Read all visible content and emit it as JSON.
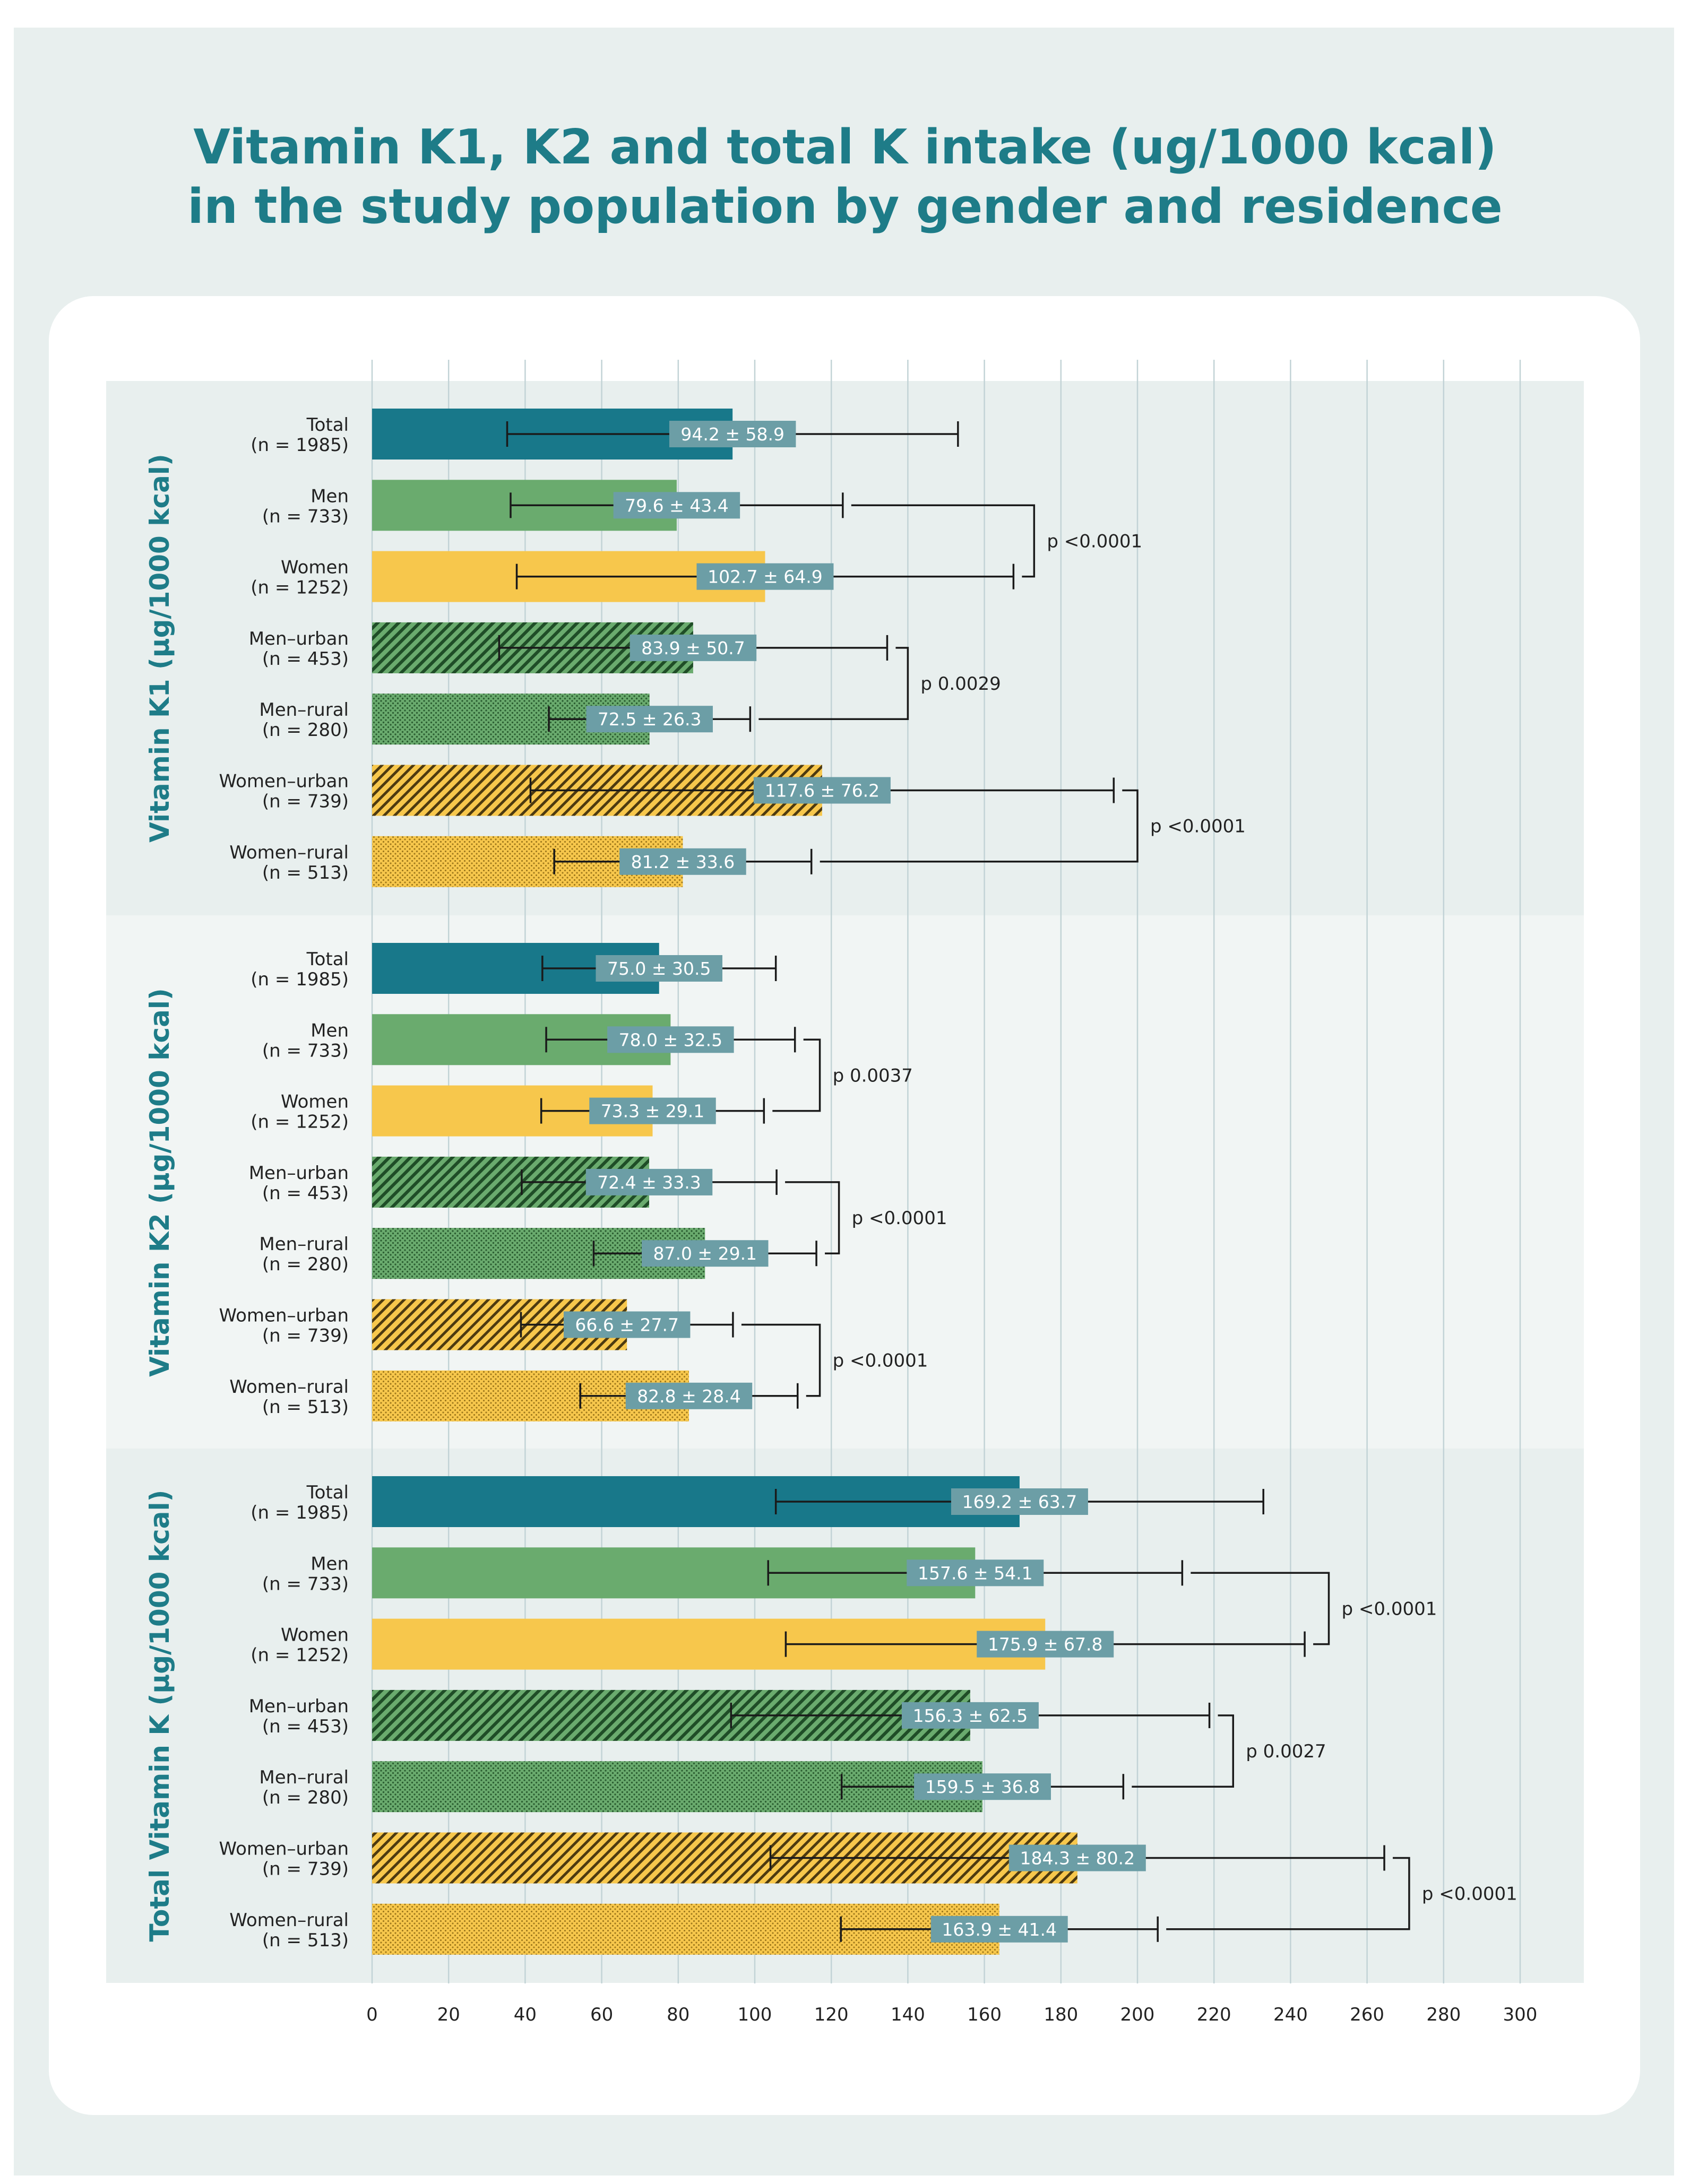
{
  "title": {
    "line1": "Vitamin K1, K2 and total K intake (ug/1000 kcal)",
    "line2": "in the study population by gender and residence"
  },
  "colors": {
    "title": "#1e7c88",
    "total": "#18788a",
    "men": "#6aab6e",
    "women": "#f7c74c",
    "men_pattern": "#1f4d27",
    "women_pattern": "#4d3a10",
    "label_box": "#6c9ea6",
    "panel_a": "#e8efee",
    "panel_b": "#f1f5f4",
    "gridline": "#c2d3d6"
  },
  "chart_data": {
    "type": "bar",
    "orientation": "horizontal",
    "xlim": [
      0,
      300
    ],
    "xticks": [
      0,
      20,
      40,
      60,
      80,
      100,
      120,
      140,
      160,
      180,
      200,
      220,
      240,
      260,
      280,
      300
    ],
    "grid": true,
    "panels": [
      {
        "ylabel": "Vitamin K1 (µg/1000 kcal)",
        "categories": [
          {
            "name": "Total",
            "n": "(n = 1985)",
            "group": "total",
            "style": "solid",
            "mean": 94.2,
            "sd": 58.9,
            "label": "94.2 ± 58.9"
          },
          {
            "name": "Men",
            "n": "(n = 733)",
            "group": "men",
            "style": "solid",
            "mean": 79.6,
            "sd": 43.4,
            "label": "79.6 ± 43.4"
          },
          {
            "name": "Women",
            "n": "(n = 1252)",
            "group": "women",
            "style": "solid",
            "mean": 102.7,
            "sd": 64.9,
            "label": "102.7 ± 64.9"
          },
          {
            "name": "Men–urban",
            "n": "(n = 453)",
            "group": "men",
            "style": "hatch",
            "mean": 83.9,
            "sd": 50.7,
            "label": "83.9 ± 50.7"
          },
          {
            "name": "Men–rural",
            "n": "(n = 280)",
            "group": "men",
            "style": "dots",
            "mean": 72.5,
            "sd": 26.3,
            "label": "72.5 ± 26.3"
          },
          {
            "name": "Women–urban",
            "n": "(n = 739)",
            "group": "women",
            "style": "hatch",
            "mean": 117.6,
            "sd": 76.2,
            "label": "117.6 ± 76.2"
          },
          {
            "name": "Women–rural",
            "n": "(n = 513)",
            "group": "women",
            "style": "dots",
            "mean": 81.2,
            "sd": 33.6,
            "label": "81.2 ± 33.6"
          }
        ],
        "comparisons": [
          {
            "rows": [
              1,
              2
            ],
            "bracket_x": 173,
            "p": "p <0.0001"
          },
          {
            "rows": [
              3,
              4
            ],
            "bracket_x": 140,
            "p": "p 0.0029"
          },
          {
            "rows": [
              5,
              6
            ],
            "bracket_x": 200,
            "p": "p <0.0001"
          }
        ]
      },
      {
        "ylabel": "Vitamin K2 (µg/1000 kcal)",
        "categories": [
          {
            "name": "Total",
            "n": "(n = 1985)",
            "group": "total",
            "style": "solid",
            "mean": 75.0,
            "sd": 30.5,
            "label": "75.0 ± 30.5"
          },
          {
            "name": "Men",
            "n": "(n = 733)",
            "group": "men",
            "style": "solid",
            "mean": 78.0,
            "sd": 32.5,
            "label": "78.0 ± 32.5"
          },
          {
            "name": "Women",
            "n": "(n = 1252)",
            "group": "women",
            "style": "solid",
            "mean": 73.3,
            "sd": 29.1,
            "label": "73.3 ± 29.1"
          },
          {
            "name": "Men–urban",
            "n": "(n = 453)",
            "group": "men",
            "style": "hatch",
            "mean": 72.4,
            "sd": 33.3,
            "label": "72.4 ± 33.3"
          },
          {
            "name": "Men–rural",
            "n": "(n = 280)",
            "group": "men",
            "style": "dots",
            "mean": 87.0,
            "sd": 29.1,
            "label": "87.0 ± 29.1"
          },
          {
            "name": "Women–urban",
            "n": "(n = 739)",
            "group": "women",
            "style": "hatch",
            "mean": 66.6,
            "sd": 27.7,
            "label": "66.6 ± 27.7"
          },
          {
            "name": "Women–rural",
            "n": "(n = 513)",
            "group": "women",
            "style": "dots",
            "mean": 82.8,
            "sd": 28.4,
            "label": "82.8 ± 28.4"
          }
        ],
        "comparisons": [
          {
            "rows": [
              1,
              2
            ],
            "bracket_x": 117,
            "p": "p 0.0037"
          },
          {
            "rows": [
              3,
              4
            ],
            "bracket_x": 122,
            "p": "p <0.0001"
          },
          {
            "rows": [
              5,
              6
            ],
            "bracket_x": 117,
            "p": "p <0.0001"
          }
        ]
      },
      {
        "ylabel": "Total Vitamin K (µg/1000 kcal)",
        "categories": [
          {
            "name": "Total",
            "n": "(n = 1985)",
            "group": "total",
            "style": "solid",
            "mean": 169.2,
            "sd": 63.7,
            "label": "169.2 ± 63.7"
          },
          {
            "name": "Men",
            "n": "(n = 733)",
            "group": "men",
            "style": "solid",
            "mean": 157.6,
            "sd": 54.1,
            "label": "157.6 ± 54.1"
          },
          {
            "name": "Women",
            "n": "(n = 1252)",
            "group": "women",
            "style": "solid",
            "mean": 175.9,
            "sd": 67.8,
            "label": "175.9 ± 67.8"
          },
          {
            "name": "Men–urban",
            "n": "(n = 453)",
            "group": "men",
            "style": "hatch",
            "mean": 156.3,
            "sd": 62.5,
            "label": "156.3 ± 62.5"
          },
          {
            "name": "Men–rural",
            "n": "(n = 280)",
            "group": "men",
            "style": "dots",
            "mean": 159.5,
            "sd": 36.8,
            "label": "159.5 ± 36.8"
          },
          {
            "name": "Women–urban",
            "n": "(n = 739)",
            "group": "women",
            "style": "hatch",
            "mean": 184.3,
            "sd": 80.2,
            "label": "184.3 ± 80.2"
          },
          {
            "name": "Women–rural",
            "n": "(n = 513)",
            "group": "women",
            "style": "dots",
            "mean": 163.9,
            "sd": 41.4,
            "label": "163.9 ± 41.4"
          }
        ],
        "comparisons": [
          {
            "rows": [
              1,
              2
            ],
            "bracket_x": 250,
            "p": "p <0.0001"
          },
          {
            "rows": [
              3,
              4
            ],
            "bracket_x": 225,
            "p": "p 0.0027"
          },
          {
            "rows": [
              5,
              6
            ],
            "bracket_x": 271,
            "p": "p <0.0001"
          }
        ]
      }
    ]
  }
}
